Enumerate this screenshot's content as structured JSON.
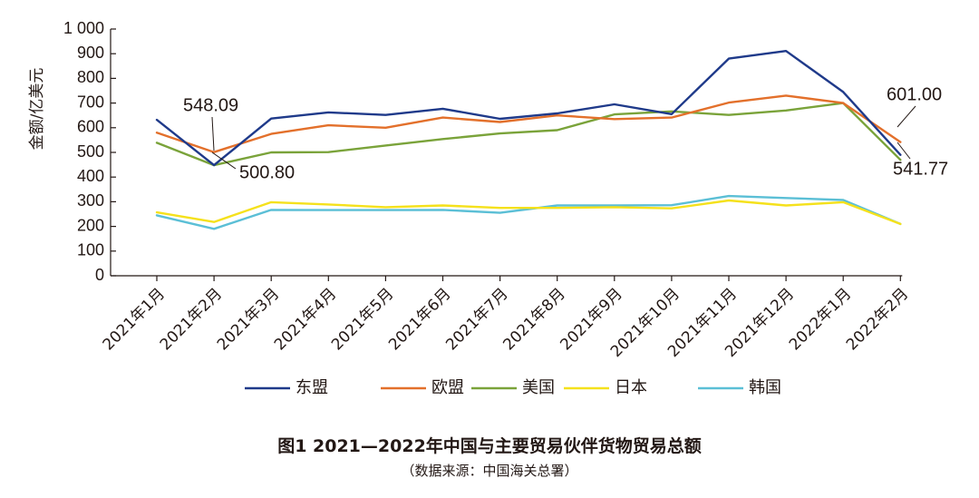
{
  "figure": {
    "title": "图1  2021—2022年中国与主要贸易伙伴货物贸易总额",
    "source": "（数据来源：中国海关总署）"
  },
  "chart_data": {
    "type": "line",
    "ylabel": "金额/亿美元",
    "xlabel": "",
    "ylim": [
      0,
      1000
    ],
    "yticks": [
      0,
      100,
      200,
      300,
      400,
      500,
      600,
      700,
      800,
      900,
      1000
    ],
    "ytick_labels": [
      "0",
      "100",
      "200",
      "300",
      "400",
      "500",
      "600",
      "700",
      "800",
      "900",
      "1 000"
    ],
    "categories": [
      "2021年1月",
      "2021年2月",
      "2021年3月",
      "2021年4月",
      "2021年5月",
      "2021年6月",
      "2021年7月",
      "2021年8月",
      "2021年9月",
      "2021年10月",
      "2021年11月",
      "2021年12月",
      "2022年1月",
      "2022年2月"
    ],
    "grid": false,
    "legend_position": "bottom",
    "series": [
      {
        "name": "东盟",
        "color": "#1f3a8a",
        "values": [
          632,
          448,
          637,
          662,
          652,
          677,
          636,
          658,
          695,
          655,
          880,
          911,
          745,
          490
        ]
      },
      {
        "name": "欧盟",
        "color": "#e3702b",
        "values": [
          580,
          501,
          575,
          610,
          600,
          641,
          623,
          650,
          635,
          641,
          702,
          730,
          700,
          542
        ]
      },
      {
        "name": "美国",
        "color": "#7aa33a",
        "values": [
          539,
          448,
          500,
          501,
          528,
          554,
          577,
          590,
          654,
          666,
          652,
          670,
          700,
          470
        ]
      },
      {
        "name": "日本",
        "color": "#f5e11c",
        "values": [
          257,
          218,
          298,
          289,
          278,
          285,
          275,
          275,
          278,
          273,
          305,
          285,
          298,
          210
        ]
      },
      {
        "name": "韩国",
        "color": "#5bbfd6",
        "values": [
          245,
          190,
          267,
          266,
          266,
          267,
          255,
          285,
          285,
          286,
          323,
          315,
          307,
          210
        ]
      }
    ],
    "annotations": [
      {
        "text": "548.09"
      },
      {
        "text": "500.80"
      },
      {
        "text": "601.00"
      },
      {
        "text": "541.77"
      }
    ]
  }
}
